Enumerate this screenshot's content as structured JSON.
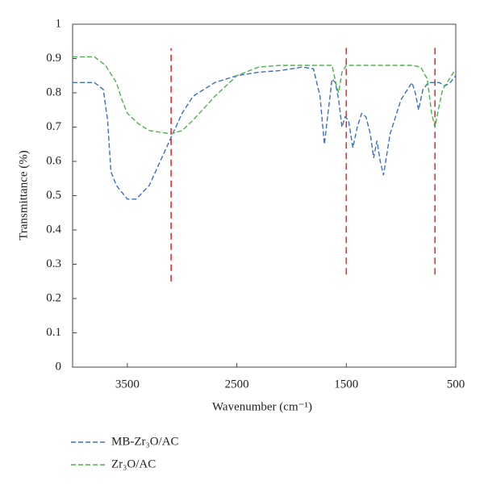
{
  "chart_data": {
    "type": "line",
    "xlabel": "Wavenumber (cm⁻¹)",
    "ylabel": "Transmittance (%)",
    "xlim": [
      4000,
      500
    ],
    "xticks": [
      3500,
      2500,
      1500,
      500
    ],
    "ylim": [
      0,
      1
    ],
    "yticks": [
      0,
      0.1,
      0.2,
      0.3,
      0.4,
      0.5,
      0.6,
      0.7,
      0.8,
      0.9,
      1
    ],
    "series": [
      {
        "name": "MB-Zr₃O/AC",
        "color": "#3a6fc4",
        "x": [
          4000,
          3800,
          3720,
          3680,
          3650,
          3600,
          3500,
          3420,
          3300,
          3200,
          3100,
          3000,
          2900,
          2700,
          2500,
          2300,
          2100,
          1900,
          1800,
          1740,
          1700,
          1660,
          1630,
          1600,
          1570,
          1540,
          1510,
          1480,
          1440,
          1400,
          1360,
          1320,
          1280,
          1250,
          1220,
          1190,
          1160,
          1100,
          1000,
          900,
          870,
          840,
          800,
          750,
          700,
          650,
          600,
          550,
          500
        ],
        "values": [
          0.83,
          0.83,
          0.81,
          0.72,
          0.57,
          0.53,
          0.49,
          0.49,
          0.53,
          0.6,
          0.67,
          0.74,
          0.79,
          0.83,
          0.85,
          0.86,
          0.865,
          0.875,
          0.87,
          0.79,
          0.65,
          0.76,
          0.84,
          0.83,
          0.78,
          0.7,
          0.73,
          0.72,
          0.64,
          0.7,
          0.74,
          0.73,
          0.68,
          0.61,
          0.66,
          0.6,
          0.56,
          0.68,
          0.78,
          0.83,
          0.8,
          0.75,
          0.81,
          0.83,
          0.83,
          0.83,
          0.82,
          0.83,
          0.85
        ]
      },
      {
        "name": "Zr₃O/AC",
        "color": "#4db34d",
        "x": [
          4000,
          3800,
          3700,
          3600,
          3550,
          3500,
          3400,
          3300,
          3100,
          3000,
          2900,
          2700,
          2500,
          2300,
          2100,
          1800,
          1700,
          1630,
          1590,
          1570,
          1540,
          1500,
          1200,
          900,
          820,
          760,
          720,
          690,
          660,
          620,
          560,
          500
        ],
        "values": [
          0.905,
          0.905,
          0.88,
          0.83,
          0.78,
          0.74,
          0.71,
          0.69,
          0.68,
          0.69,
          0.72,
          0.79,
          0.85,
          0.875,
          0.88,
          0.88,
          0.88,
          0.88,
          0.82,
          0.8,
          0.86,
          0.88,
          0.88,
          0.88,
          0.875,
          0.84,
          0.74,
          0.7,
          0.75,
          0.81,
          0.84,
          0.87
        ]
      }
    ],
    "reference_lines": [
      {
        "x": 3100,
        "y": [
          0.25,
          0.93
        ],
        "color": "#e03030"
      },
      {
        "x": 1500,
        "y": [
          0.27,
          0.94
        ],
        "color": "#e03030"
      },
      {
        "x": 690,
        "y": [
          0.27,
          0.94
        ],
        "color": "#e03030"
      }
    ]
  }
}
